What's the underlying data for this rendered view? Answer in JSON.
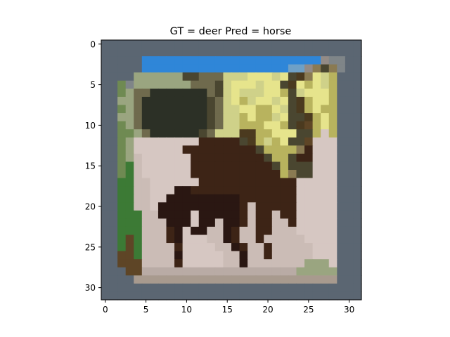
{
  "chart_data": {
    "type": "heatmap",
    "title": "GT = deer Pred = horse",
    "xlabel": "",
    "ylabel": "",
    "xlim": [
      -0.5,
      31.5
    ],
    "ylim": [
      31.5,
      -0.5
    ],
    "x_ticks": [
      0,
      5,
      10,
      15,
      20,
      25,
      30
    ],
    "y_ticks": [
      0,
      5,
      10,
      15,
      20,
      25,
      30
    ],
    "grid": false,
    "image": {
      "width": 32,
      "height": 32,
      "palette": {
        "a": "#5b6672",
        "b": "#7f8588",
        "c": "#2f86d8",
        "d": "#6fa0c6",
        "e": "#9aa580",
        "f": "#cfd189",
        "g": "#e6e48c",
        "h": "#b8b35e",
        "i": "#6f6a4d",
        "j": "#4a4630",
        "k": "#2c3026",
        "l": "#2a1712",
        "m": "#3d2416",
        "n": "#4b3a1f",
        "o": "#d6c7c2",
        "p": "#cbbcb6",
        "q": "#b9aba5",
        "r": "#e0d3d0",
        "s": "#3c7a35",
        "t": "#6f8a52",
        "u": "#5e4526",
        "v": "#8a7a52",
        "w": "#a89a8e",
        "x": "#938b86"
      },
      "rows": [
        "aaaaaaaaaaaaaaaaaaaaaaaaaaaaaaaa",
        "aaaaaaaaaaaaaaaaaaaaaaaaaaaaaaaa",
        "aaaaaccccccccccccccccccccccxbbaa",
        "aaaaaccccccccccccccccccddxvjvbaa",
        "aaaaeeeeeejjiiifffgggfgjnvgfhaaa",
        "aatbeeeeeeeiiijfgggfggjnghgfhaaa",
        "aateiikkkkkkkijfgfffgghjfggghaaa",
        "aaeeikkkkkkkkjifghfggfgjnhgghaaa",
        "aateikkkkkkkkjiffgghhgfjnhghhaaa",
        "aaeeikkkkkkkkjiffhghhfgjjnhghaaa",
        "aateikkkkkkkkjiffhhhgghjnuhghaaa",
        "aatteikkkkkkjifffnnhhgggjjhohaaa",
        "aateoooooooommmmmjnhfhgjjuoooaaa",
        "aateoooooommmmmmmmmjhhhhvmoooaaa",
        "aatepoooooommmmmmmmmjhhjmmoooaaa",
        "aatspoooooommmmmmmmmmjhjjjoooaaa",
        "aatspoooooommmmmmmmmmmhvjjoooaaa",
        "aassppoooooommmmmmmmmmmmoooooaaa",
        "aassppooollmmmmmmmmmmmmmoooooaaa",
        "aassppoolllllllllmmmmmmmoooooaaa",
        "aassppollllllllllmpmmmmmoooooaaa",
        "aasssppllllolllllmpmmpmmoooooaaa",
        "aasssppplllollpllmpmmppmoooooaaa",
        "aassspppmlollpplmppmmpppoooooaaa",
        "aasuspppmlooopplmppmpppppooooaaa",
        "aasusppppmoooopplmppmpppppoooaaa",
        "aauuspppplooooopplppmpppppoooaaa",
        "aauuuppppmooooopplpppppppeeeoaaa",
        "aaauuqqqqqqqqqqqqqqqqqqqeeeeeaaa",
        "aaaawwwwwwwwwwwwwwwwwwwwwwwwwaaa",
        "aaaaaaaaaaaaaaaaaaaaaaaaaaaaaaaa",
        "aaaaaaaaaaaaaaaaaaaaaaaaaaaaaaaa"
      ]
    }
  }
}
